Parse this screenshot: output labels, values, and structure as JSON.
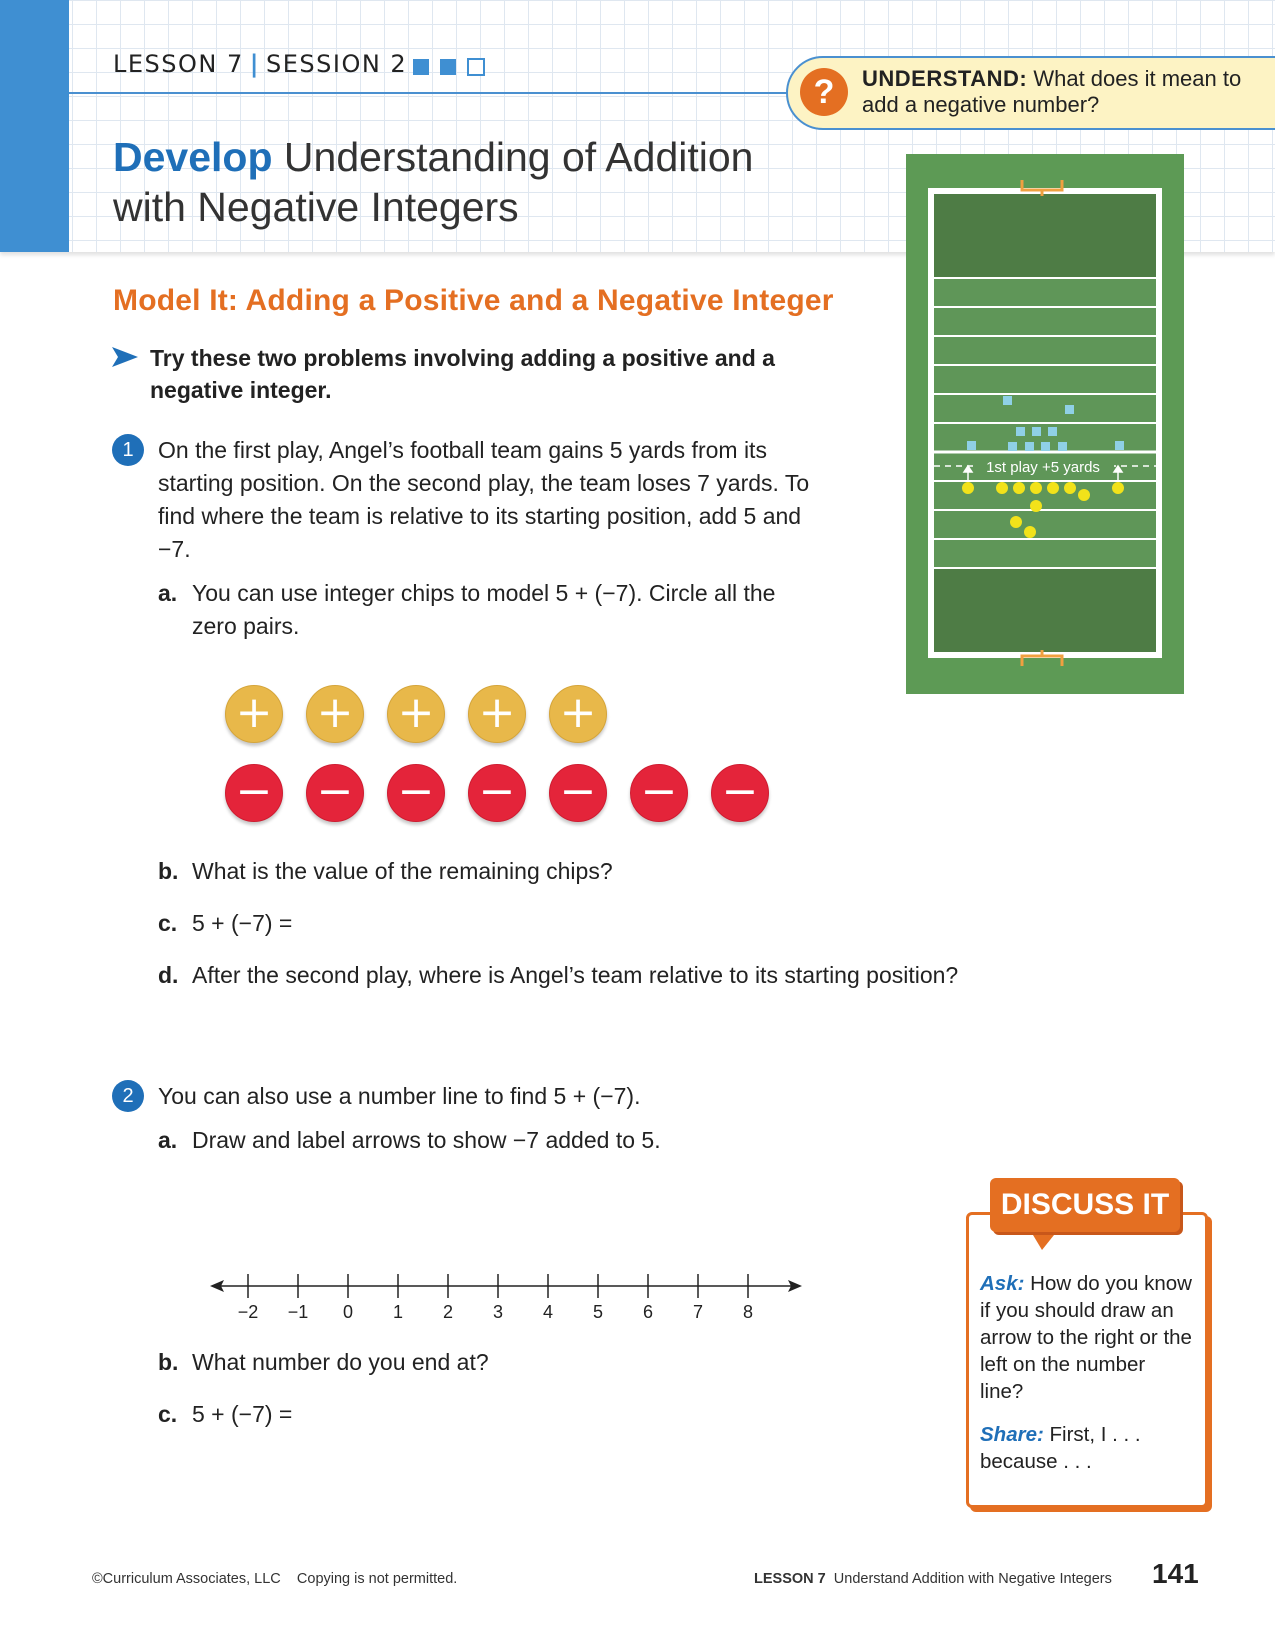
{
  "header": {
    "lesson": "LESSON 7",
    "session": "SESSION 2",
    "progress": {
      "completed": 2,
      "total": 3
    },
    "understand_label": "UNDERSTAND:",
    "understand_question": "What does it mean to add a negative number?",
    "title_bold": "Develop",
    "title_rest": "Understanding of Addition with Negative Integers"
  },
  "model_it": {
    "heading": "Model It: Adding a Positive and a Negative Integer",
    "instruction": "Try these two problems involving adding a positive and a negative integer."
  },
  "problem1": {
    "number": "1",
    "text": "On the first play, Angel’s football team gains 5 yards from its starting position. On the second play, the team loses 7 yards. To find where the team is relative to its starting position, add 5 and −7.",
    "a_letter": "a.",
    "a_text": "You can use integer chips to model 5 + (−7). Circle all the zero pairs.",
    "positive_chips": [
      "+",
      "+",
      "+",
      "+",
      "+"
    ],
    "negative_chips": [
      "−",
      "−",
      "−",
      "−",
      "−",
      "−",
      "−"
    ],
    "b_letter": "b.",
    "b_text": "What is the value of the remaining chips?",
    "c_letter": "c.",
    "c_text": "5 + (−7) =",
    "d_letter": "d.",
    "d_text": "After the second play, where is Angel’s team relative to its starting position?"
  },
  "field": {
    "label": "1st play +5 yards",
    "colors": {
      "turf": "#5d9a55",
      "field_dark": "#4e7c45",
      "offense": "#f2e21a",
      "defense": "#8fd0e6",
      "goal": "#f0a040"
    }
  },
  "problem2": {
    "number": "2",
    "text": "You can also use a number line to find 5 + (−7).",
    "a_letter": "a.",
    "a_text": "Draw and label arrows to show −7 added to 5.",
    "number_line_ticks": [
      "−2",
      "−1",
      "0",
      "1",
      "2",
      "3",
      "4",
      "5",
      "6",
      "7",
      "8"
    ],
    "b_letter": "b.",
    "b_text": "What number do you end at?",
    "c_letter": "c.",
    "c_text": "5 + (−7) ="
  },
  "discuss": {
    "title": "DISCUSS IT",
    "ask_label": "Ask:",
    "ask_text": "How do you know if you should draw an arrow to the right or the left on the number line?",
    "share_label": "Share:",
    "share_text": "First, I . . . because . . ."
  },
  "footer": {
    "copyright": "©Curriculum Associates, LLC",
    "notice": "Copying is not permitted.",
    "lesson": "LESSON 7",
    "lesson_title": "Understand Addition with Negative Integers",
    "page_number": "141"
  },
  "colors": {
    "accent_blue": "#1f6fb8",
    "accent_orange": "#e46f22",
    "chip_positive": "#e8b84a",
    "chip_negative": "#e4243a"
  }
}
